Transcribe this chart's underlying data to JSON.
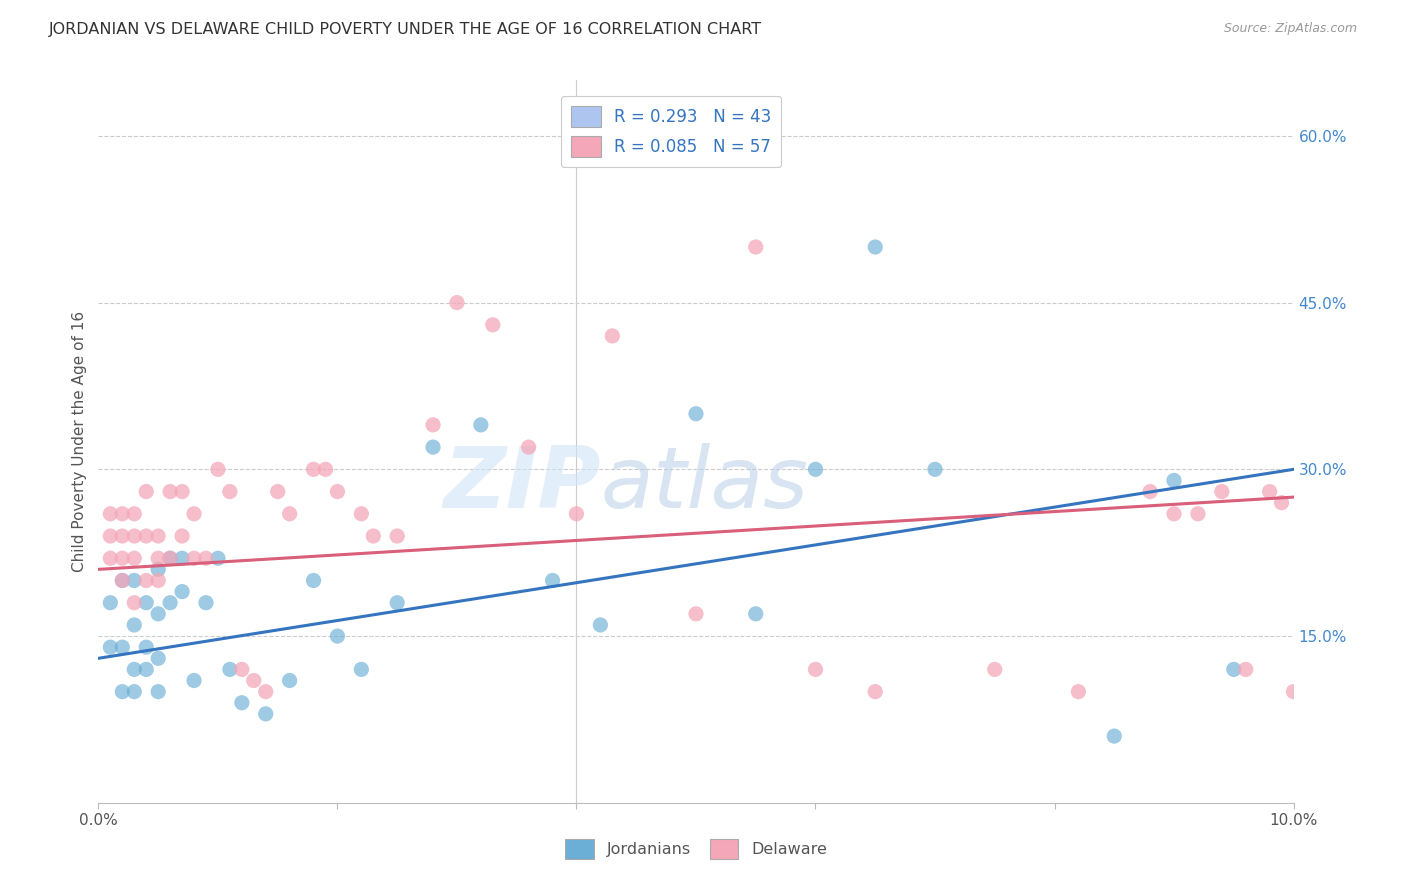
{
  "title": "JORDANIAN VS DELAWARE CHILD POVERTY UNDER THE AGE OF 16 CORRELATION CHART",
  "source": "Source: ZipAtlas.com",
  "ylabel": "Child Poverty Under the Age of 16",
  "xlim": [
    0.0,
    0.1
  ],
  "ylim": [
    0.0,
    0.65
  ],
  "x_tick_positions": [
    0.0,
    0.02,
    0.04,
    0.06,
    0.08,
    0.1
  ],
  "x_tick_labels": [
    "0.0%",
    "",
    "",
    "",
    "",
    "10.0%"
  ],
  "y_ticks_right": [
    0.15,
    0.3,
    0.45,
    0.6
  ],
  "y_tick_labels_right": [
    "15.0%",
    "30.0%",
    "45.0%",
    "60.0%"
  ],
  "legend_entries": [
    {
      "label": "R = 0.293   N = 43",
      "color": "#aec6ef"
    },
    {
      "label": "R = 0.085   N = 57",
      "color": "#f4a7b9"
    }
  ],
  "jordanians_color": "#6baed6",
  "delaware_color": "#f4a7b9",
  "trend_jordan_color": "#3575c0",
  "trend_delaware_color": "#d95f7a",
  "watermark_text": "ZIPatlas",
  "background_color": "#ffffff",
  "grid_color": "#cccccc",
  "jordanians": {
    "x": [
      0.001,
      0.001,
      0.002,
      0.002,
      0.002,
      0.003,
      0.003,
      0.003,
      0.003,
      0.004,
      0.004,
      0.004,
      0.005,
      0.005,
      0.005,
      0.005,
      0.006,
      0.006,
      0.007,
      0.007,
      0.008,
      0.009,
      0.01,
      0.011,
      0.012,
      0.014,
      0.016,
      0.018,
      0.02,
      0.022,
      0.025,
      0.028,
      0.032,
      0.038,
      0.042,
      0.05,
      0.055,
      0.06,
      0.065,
      0.07,
      0.085,
      0.09,
      0.095
    ],
    "y": [
      0.14,
      0.18,
      0.1,
      0.14,
      0.2,
      0.1,
      0.12,
      0.16,
      0.2,
      0.12,
      0.14,
      0.18,
      0.1,
      0.13,
      0.17,
      0.21,
      0.18,
      0.22,
      0.19,
      0.22,
      0.11,
      0.18,
      0.22,
      0.12,
      0.09,
      0.08,
      0.11,
      0.2,
      0.15,
      0.12,
      0.18,
      0.32,
      0.34,
      0.2,
      0.16,
      0.35,
      0.17,
      0.3,
      0.5,
      0.3,
      0.06,
      0.29,
      0.12
    ]
  },
  "delaware": {
    "x": [
      0.001,
      0.001,
      0.001,
      0.002,
      0.002,
      0.002,
      0.002,
      0.003,
      0.003,
      0.003,
      0.003,
      0.004,
      0.004,
      0.004,
      0.005,
      0.005,
      0.005,
      0.006,
      0.006,
      0.007,
      0.007,
      0.008,
      0.008,
      0.009,
      0.01,
      0.011,
      0.012,
      0.013,
      0.014,
      0.015,
      0.016,
      0.018,
      0.019,
      0.02,
      0.022,
      0.023,
      0.025,
      0.028,
      0.03,
      0.033,
      0.036,
      0.04,
      0.043,
      0.05,
      0.055,
      0.06,
      0.065,
      0.075,
      0.082,
      0.088,
      0.09,
      0.092,
      0.094,
      0.096,
      0.098,
      0.099,
      0.1
    ],
    "y": [
      0.22,
      0.24,
      0.26,
      0.2,
      0.22,
      0.24,
      0.26,
      0.18,
      0.22,
      0.24,
      0.26,
      0.2,
      0.24,
      0.28,
      0.2,
      0.22,
      0.24,
      0.22,
      0.28,
      0.24,
      0.28,
      0.22,
      0.26,
      0.22,
      0.3,
      0.28,
      0.12,
      0.11,
      0.1,
      0.28,
      0.26,
      0.3,
      0.3,
      0.28,
      0.26,
      0.24,
      0.24,
      0.34,
      0.45,
      0.43,
      0.32,
      0.26,
      0.42,
      0.17,
      0.5,
      0.12,
      0.1,
      0.12,
      0.1,
      0.28,
      0.26,
      0.26,
      0.28,
      0.12,
      0.28,
      0.27,
      0.1
    ]
  },
  "trend_jordan_intercept": 0.13,
  "trend_jordan_slope": 1.7,
  "trend_delaware_intercept": 0.21,
  "trend_delaware_slope": 0.65
}
